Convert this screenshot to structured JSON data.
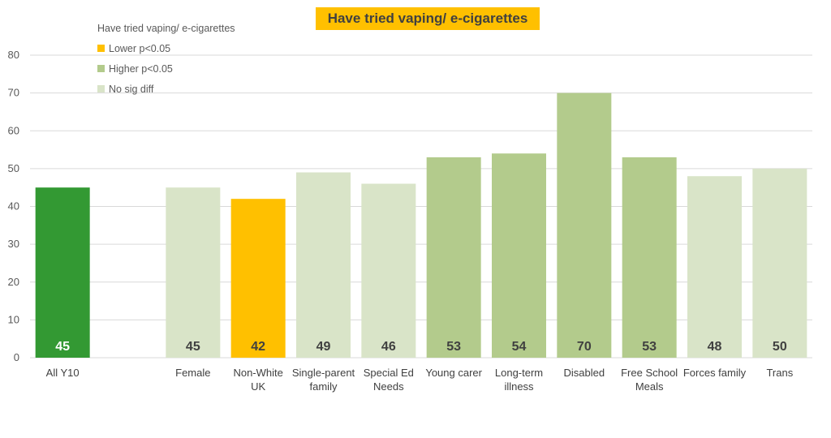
{
  "chart_data": {
    "type": "bar",
    "title": "Have tried vaping/ e-cigarettes",
    "ylim": [
      0,
      80
    ],
    "yticks": [
      0,
      10,
      20,
      30,
      40,
      50,
      60,
      70,
      80
    ],
    "grid": true,
    "categories": [
      "All Y10",
      "",
      "Female",
      "Non-White UK",
      "Single-parent family",
      "Special Ed Needs",
      "Young carer",
      "Long-term illness",
      "Disabled",
      "Free School Meals",
      "Forces family",
      "Trans"
    ],
    "category_lines": [
      [
        "All Y10"
      ],
      [],
      [
        "Female"
      ],
      [
        "Non-White",
        "UK"
      ],
      [
        "Single-parent",
        "family"
      ],
      [
        "Special Ed",
        "Needs"
      ],
      [
        "Young carer"
      ],
      [
        "Long-term",
        "illness"
      ],
      [
        "Disabled"
      ],
      [
        "Free School",
        "Meals"
      ],
      [
        "Forces family"
      ],
      [
        "Trans"
      ]
    ],
    "values": [
      45,
      null,
      45,
      42,
      49,
      46,
      53,
      54,
      70,
      53,
      48,
      50
    ],
    "bar_groups": [
      "baseline",
      null,
      "nodiff",
      "lower",
      "nodiff",
      "nodiff",
      "higher",
      "higher",
      "higher",
      "higher",
      "nodiff",
      "nodiff"
    ],
    "legend": {
      "title": "Have tried vaping/ e-cigarettes",
      "position": "top-left",
      "items": [
        {
          "key": "lower",
          "label": "Lower p<0.05"
        },
        {
          "key": "higher",
          "label": "Higher p<0.05"
        },
        {
          "key": "nodiff",
          "label": "No sig diff"
        }
      ]
    },
    "colors": {
      "baseline": "#339933",
      "lower": "#ffc000",
      "higher": "#b3cb8c",
      "nodiff": "#d9e4c8",
      "label_on_dark": "#ffffff",
      "label_on_light": "#404040",
      "grid": "#d9d9d9"
    }
  }
}
